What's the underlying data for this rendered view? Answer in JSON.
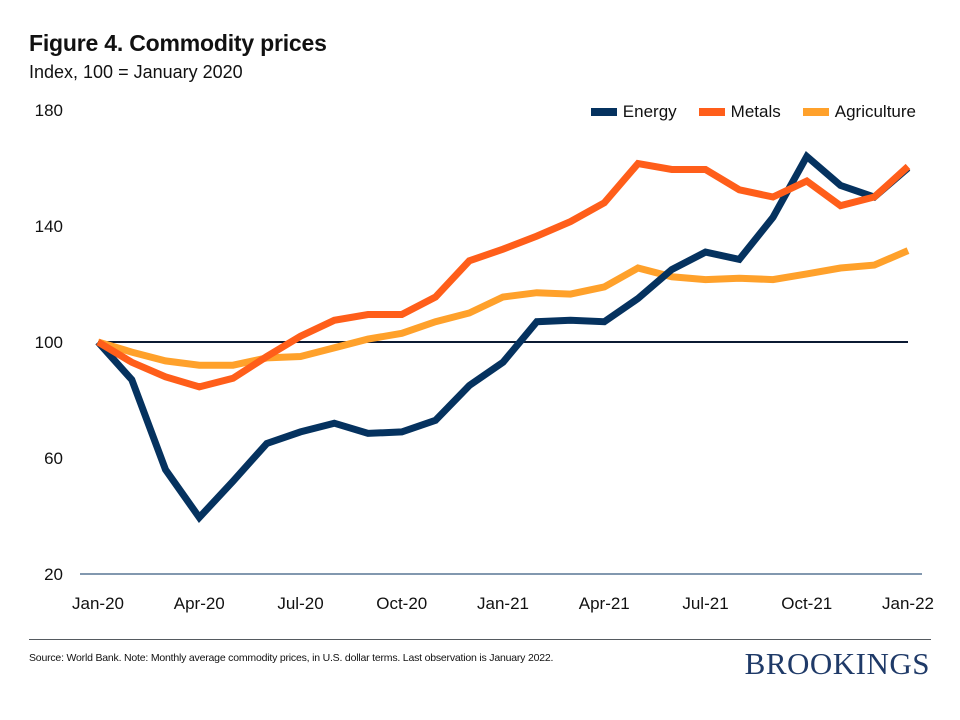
{
  "header": {
    "title": "Figure 4. Commodity prices",
    "subtitle": "Index, 100 = January 2020"
  },
  "footer": {
    "source": "Source: World Bank. Note: Monthly average commodity prices, in U.S. dollar terms. Last observation is January 2022.",
    "brand": "BROOKINGS"
  },
  "chart_data": {
    "type": "line",
    "title": "Figure 4. Commodity prices",
    "subtitle": "Index, 100 = January 2020",
    "xlabel": "",
    "ylabel": "",
    "ylim": [
      20,
      180
    ],
    "yticks": [
      20,
      60,
      100,
      140,
      180
    ],
    "ytick_labels": [
      "20",
      "60",
      "100",
      "140",
      "180"
    ],
    "xtick_labels": [
      "Jan-20",
      "Apr-20",
      "Jul-20",
      "Oct-20",
      "Jan-21",
      "Apr-21",
      "Jul-21",
      "Oct-21",
      "Jan-22"
    ],
    "xtick_every": 3,
    "x": [
      "Jan-20",
      "Feb-20",
      "Mar-20",
      "Apr-20",
      "May-20",
      "Jun-20",
      "Jul-20",
      "Aug-20",
      "Sep-20",
      "Oct-20",
      "Nov-20",
      "Dec-20",
      "Jan-21",
      "Feb-21",
      "Mar-21",
      "Apr-21",
      "May-21",
      "Jun-21",
      "Jul-21",
      "Aug-21",
      "Sep-21",
      "Oct-21",
      "Nov-21",
      "Dec-21",
      "Jan-22"
    ],
    "reference_line": 100,
    "grid": false,
    "legend_position": "top-right",
    "series": [
      {
        "name": "Energy",
        "color": "#05325f",
        "values": [
          100,
          87,
          56,
          39.5,
          52,
          65,
          69,
          72,
          68.5,
          69,
          73,
          85,
          93,
          107,
          107.5,
          107,
          115,
          125,
          131,
          128.5,
          143,
          164,
          154,
          150,
          160
        ]
      },
      {
        "name": "Metals",
        "color": "#ff5e1a",
        "values": [
          100,
          93,
          88,
          84.5,
          87.5,
          95,
          102,
          107.5,
          109.5,
          109.5,
          115.5,
          128,
          132,
          136.5,
          141.5,
          148,
          161.5,
          159.5,
          159.5,
          152.5,
          150,
          155.5,
          147,
          150,
          160.5
        ]
      },
      {
        "name": "Agriculture",
        "color": "#ffa12b",
        "values": [
          100,
          96.5,
          93.5,
          92,
          92,
          94.5,
          95,
          98,
          101,
          103,
          107,
          110,
          115.5,
          117,
          116.5,
          119,
          125.5,
          122.5,
          121.5,
          122,
          121.5,
          123.5,
          125.5,
          126.5,
          131.5
        ]
      }
    ]
  }
}
